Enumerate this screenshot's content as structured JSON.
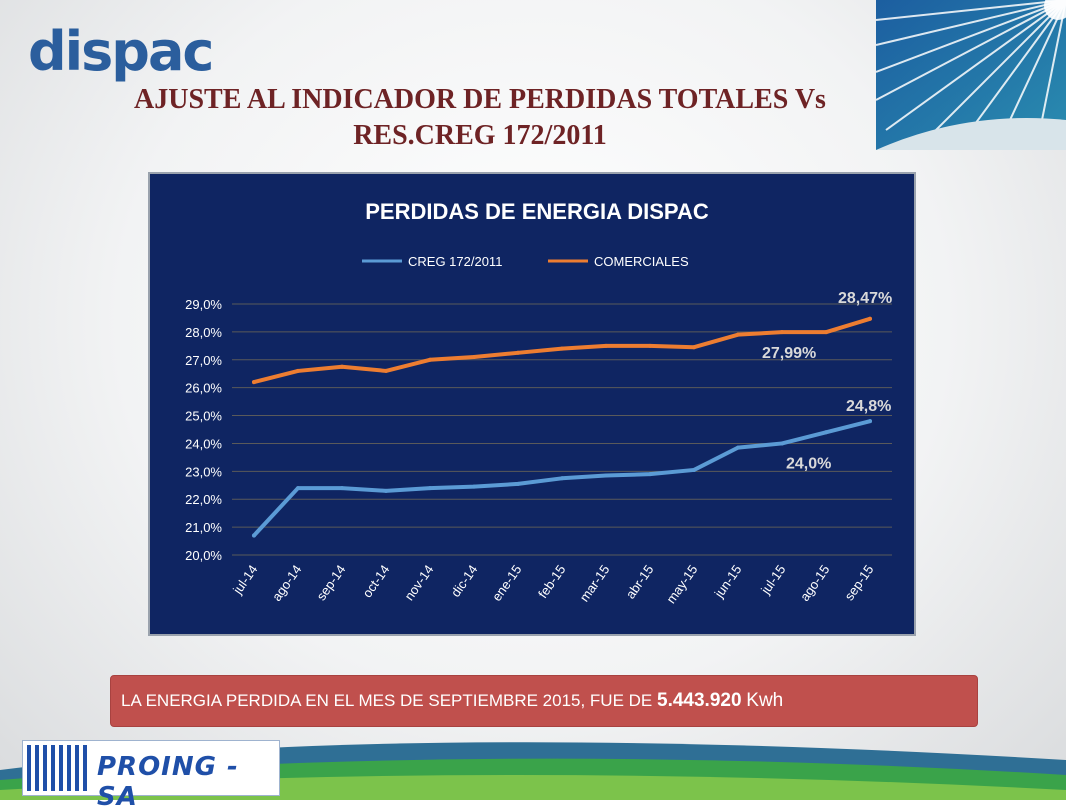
{
  "header": {
    "logo_text": "dispac",
    "title_line1": "AJUSTE AL INDICADOR DE PERDIDAS TOTALES Vs",
    "title_line2": "RES.CREG 172/2011"
  },
  "colors": {
    "title": "#6e2325",
    "chart_background": "#0f2562",
    "series_creg": "#5b9bd5",
    "series_comerciales": "#ed7d31",
    "info_box": "#c0504d"
  },
  "chart_data": {
    "type": "line",
    "title": "PERDIDAS DE ENERGIA DISPAC",
    "categories": [
      "jul-14",
      "ago-14",
      "sep-14",
      "oct-14",
      "nov-14",
      "dic-14",
      "ene-15",
      "feb-15",
      "mar-15",
      "abr-15",
      "may-15",
      "jun-15",
      "jul-15",
      "ago-15",
      "sep-15"
    ],
    "series": [
      {
        "name": "CREG 172/2011",
        "values": [
          20.7,
          22.4,
          22.4,
          22.3,
          22.4,
          22.45,
          22.55,
          22.75,
          22.85,
          22.9,
          23.05,
          23.85,
          24.0,
          24.4,
          24.8
        ]
      },
      {
        "name": "COMERCIALES",
        "values": [
          26.2,
          26.6,
          26.75,
          26.6,
          27.0,
          27.1,
          27.25,
          27.4,
          27.5,
          27.5,
          27.45,
          27.9,
          27.99,
          27.99,
          28.47
        ]
      }
    ],
    "ylim": [
      20,
      29
    ],
    "yticks": [
      "20,0%",
      "21,0%",
      "22,0%",
      "23,0%",
      "24,0%",
      "25,0%",
      "26,0%",
      "27,0%",
      "28,0%",
      "29,0%"
    ],
    "legend": "top",
    "grid": true,
    "annotations": [
      {
        "text": "28,47%",
        "series": 1,
        "index": 14
      },
      {
        "text": "27,99%",
        "series": 1,
        "index": 12
      },
      {
        "text": "24,8%",
        "series": 0,
        "index": 14
      },
      {
        "text": "24,0%",
        "series": 0,
        "index": 12
      }
    ]
  },
  "info": {
    "text": "LA ENERGIA PERDIDA EN EL MES DE SEPTIEMBRE 2015, FUE DE ",
    "value": "5.443.920",
    "unit": "Kwh"
  },
  "footer": {
    "logo_text": "PROING - SA"
  }
}
